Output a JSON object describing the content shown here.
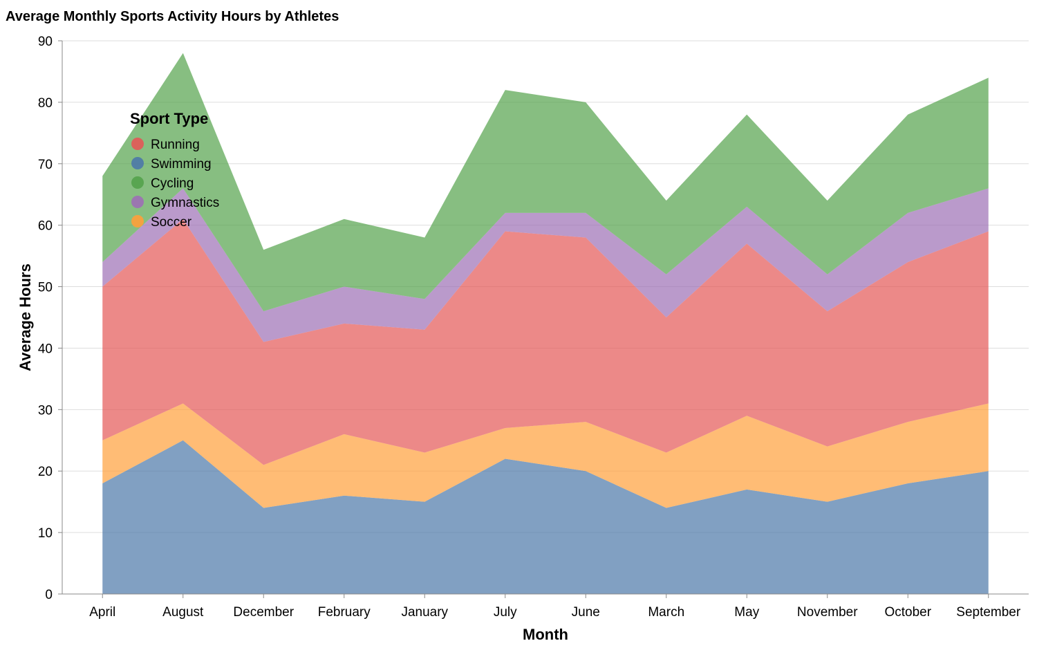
{
  "chart_data": {
    "type": "area",
    "stacked": true,
    "title": "Average Monthly Sports Activity Hours by Athletes",
    "xlabel": "Month",
    "ylabel": "Average Hours",
    "ylim": [
      0,
      90
    ],
    "yticks": [
      0,
      10,
      20,
      30,
      40,
      50,
      60,
      70,
      80,
      90
    ],
    "grid": true,
    "categories": [
      "April",
      "August",
      "December",
      "February",
      "January",
      "July",
      "June",
      "March",
      "May",
      "November",
      "October",
      "September"
    ],
    "legend": {
      "title": "Sport Type",
      "placement": "top-left",
      "entries": [
        "Running",
        "Swimming",
        "Cycling",
        "Gymnastics",
        "Soccer"
      ]
    },
    "stack_order": [
      "Swimming",
      "Soccer",
      "Running",
      "Gymnastics",
      "Cycling"
    ],
    "series": [
      {
        "name": "Running",
        "color": "#e45756",
        "values": [
          25,
          30,
          20,
          18,
          20,
          32,
          30,
          22,
          28,
          22,
          26,
          28
        ]
      },
      {
        "name": "Swimming",
        "color": "#4c78a8",
        "values": [
          18,
          25,
          14,
          16,
          15,
          22,
          20,
          14,
          17,
          15,
          18,
          20
        ]
      },
      {
        "name": "Cycling",
        "color": "#54a24b",
        "values": [
          14,
          22,
          10,
          11,
          10,
          20,
          18,
          12,
          15,
          12,
          16,
          18
        ]
      },
      {
        "name": "Gymnastics",
        "color": "#9d6fb5",
        "values": [
          4,
          5,
          5,
          6,
          5,
          3,
          4,
          7,
          6,
          6,
          8,
          7
        ]
      },
      {
        "name": "Soccer",
        "color": "#ff9f3a",
        "values": [
          7,
          6,
          7,
          10,
          8,
          5,
          8,
          9,
          12,
          9,
          10,
          11
        ]
      }
    ]
  }
}
